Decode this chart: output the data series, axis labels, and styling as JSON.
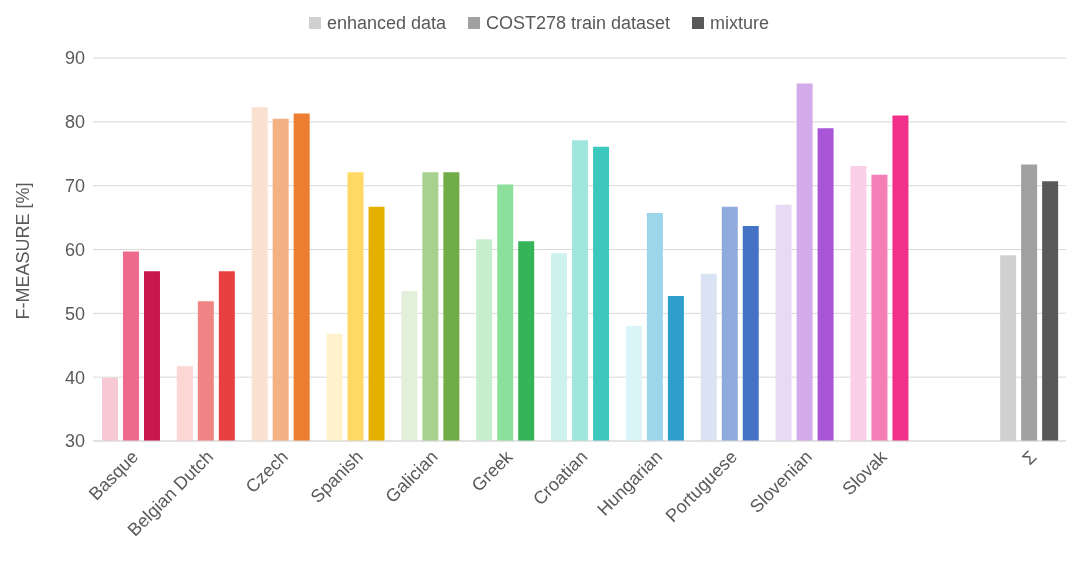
{
  "chart_data": {
    "type": "bar",
    "categories": [
      "Basque",
      "Belgian Dutch",
      "Czech",
      "Spanish",
      "Galician",
      "Greek",
      "Croatian",
      "Hungarian",
      "Portuguese",
      "Slovenian",
      "Slovak",
      null,
      "Σ"
    ],
    "series": [
      {
        "name": "enhanced data",
        "color": "#d0d0d0",
        "values": [
          39.9,
          41.7,
          82.3,
          46.8,
          53.5,
          61.6,
          59.4,
          48.0,
          56.2,
          67.0,
          73.1,
          null,
          59.1
        ],
        "colors": [
          "#f7c9d4",
          "#fcd5d5",
          "#fbe1d0",
          "#fff2cc",
          "#e2efda",
          "#c6efce",
          "#cdf2ed",
          "#d9f5f8",
          "#dae3f3",
          "#e8d9f5",
          "#fbcfe8",
          "#d0d0d0",
          "#d0d0d0"
        ]
      },
      {
        "name": "COST278 train dataset",
        "color": "#a0a0a0",
        "values": [
          59.7,
          51.9,
          80.5,
          72.1,
          72.1,
          70.2,
          77.1,
          65.7,
          66.7,
          86.0,
          71.7,
          null,
          73.3
        ],
        "colors": [
          "#ee6a8c",
          "#f08484",
          "#f4b183",
          "#ffd966",
          "#a9d18e",
          "#8ce09c",
          "#9fe6dd",
          "#9dd6ea",
          "#8faadc",
          "#d3aaea",
          "#f57eb6",
          "#a0a0a0",
          "#a0a0a0"
        ]
      },
      {
        "name": "mixture",
        "color": "#595959",
        "values": [
          56.6,
          56.6,
          81.3,
          66.7,
          72.1,
          61.3,
          76.1,
          52.7,
          63.7,
          79.0,
          81.0,
          null,
          70.7
        ],
        "colors": [
          "#c8174a",
          "#e84040",
          "#ed7d31",
          "#e6b000",
          "#70ad47",
          "#35b558",
          "#3cc8bc",
          "#2e9fcd",
          "#4472c4",
          "#a855d8",
          "#f0308a",
          "#595959",
          "#595959"
        ]
      }
    ],
    "ylabel": "F-MEASURE [%]",
    "ylim": [
      30,
      90
    ],
    "yticks": [
      30,
      40,
      50,
      60,
      70,
      80,
      90
    ],
    "grid": "y",
    "legend": "top"
  }
}
